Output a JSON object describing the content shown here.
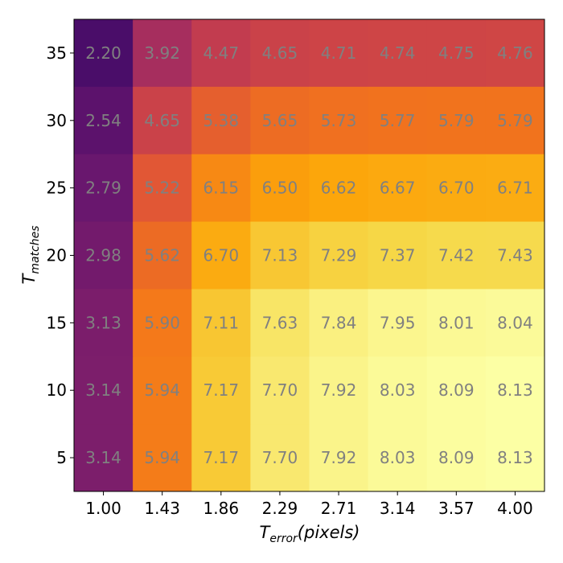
{
  "chart_data": {
    "type": "heatmap",
    "x": [
      "1.00",
      "1.43",
      "1.86",
      "2.29",
      "2.71",
      "3.14",
      "3.57",
      "4.00"
    ],
    "y": [
      "35",
      "30",
      "25",
      "20",
      "15",
      "10",
      "5"
    ],
    "values": [
      [
        2.2,
        3.92,
        4.47,
        4.65,
        4.71,
        4.74,
        4.75,
        4.76
      ],
      [
        2.54,
        4.65,
        5.38,
        5.65,
        5.73,
        5.77,
        5.79,
        5.79
      ],
      [
        2.79,
        5.22,
        6.15,
        6.5,
        6.62,
        6.67,
        6.7,
        6.71
      ],
      [
        2.98,
        5.62,
        6.7,
        7.13,
        7.29,
        7.37,
        7.42,
        7.43
      ],
      [
        3.13,
        5.9,
        7.11,
        7.63,
        7.84,
        7.95,
        8.01,
        8.04
      ],
      [
        3.14,
        5.94,
        7.17,
        7.7,
        7.92,
        8.03,
        8.09,
        8.13
      ],
      [
        3.14,
        5.94,
        7.17,
        7.7,
        7.92,
        8.03,
        8.09,
        8.13
      ]
    ],
    "xlabel": {
      "base": "T",
      "sub": "error",
      "suffix": "(pixels)"
    },
    "ylabel": {
      "base": "T",
      "sub": "matches"
    },
    "colormap": "inferno",
    "value_label_color": "#808080",
    "grid": false,
    "legend": "none"
  }
}
